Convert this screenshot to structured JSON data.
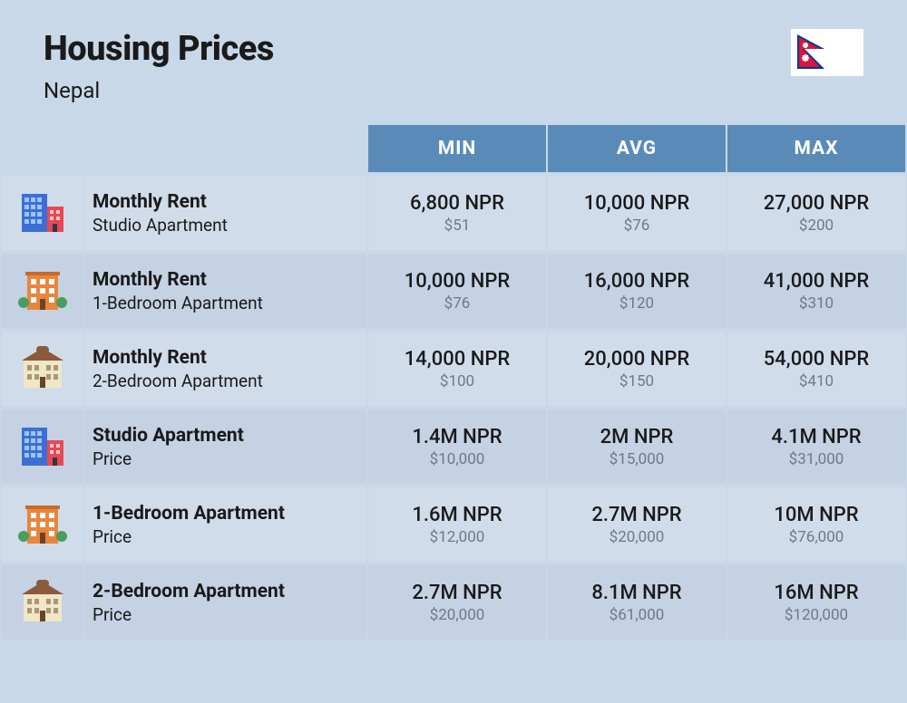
{
  "title": "Housing Prices",
  "country": "Nepal",
  "columns": {
    "min": "MIN",
    "avg": "AVG",
    "max": "MAX"
  },
  "colors": {
    "page_bg": "#c8d8e8",
    "header_bg": "#5a8bb8",
    "header_text": "#ffffff",
    "row_bg": "#d1dceb",
    "row_alt_bg": "#c4d2e4",
    "text_primary": "#1a1a1a",
    "text_secondary": "#6b7a8a",
    "flag_crimson": "#dc143c",
    "flag_blue": "#003893",
    "building_blue": "#3b6fd6",
    "building_red": "#e84855",
    "building_orange": "#e8863d",
    "building_cream": "#f0e6c8",
    "building_roof": "#8b5a3c",
    "bush_green": "#4a9d5f"
  },
  "rows": [
    {
      "icon": "buildings-blue-red",
      "title": "Monthly Rent",
      "subtitle": "Studio Apartment",
      "min_npr": "6,800 NPR",
      "min_usd": "$51",
      "avg_npr": "10,000 NPR",
      "avg_usd": "$76",
      "max_npr": "27,000 NPR",
      "max_usd": "$200"
    },
    {
      "icon": "building-orange",
      "title": "Monthly Rent",
      "subtitle": "1-Bedroom Apartment",
      "min_npr": "10,000 NPR",
      "min_usd": "$76",
      "avg_npr": "16,000 NPR",
      "avg_usd": "$120",
      "max_npr": "41,000 NPR",
      "max_usd": "$310"
    },
    {
      "icon": "house-cream",
      "title": "Monthly Rent",
      "subtitle": "2-Bedroom Apartment",
      "min_npr": "14,000 NPR",
      "min_usd": "$100",
      "avg_npr": "20,000 NPR",
      "avg_usd": "$150",
      "max_npr": "54,000 NPR",
      "max_usd": "$410"
    },
    {
      "icon": "buildings-blue-red",
      "title": "Studio Apartment",
      "subtitle": "Price",
      "min_npr": "1.4M NPR",
      "min_usd": "$10,000",
      "avg_npr": "2M NPR",
      "avg_usd": "$15,000",
      "max_npr": "4.1M NPR",
      "max_usd": "$31,000"
    },
    {
      "icon": "building-orange",
      "title": "1-Bedroom Apartment",
      "subtitle": "Price",
      "min_npr": "1.6M NPR",
      "min_usd": "$12,000",
      "avg_npr": "2.7M NPR",
      "avg_usd": "$20,000",
      "max_npr": "10M NPR",
      "max_usd": "$76,000"
    },
    {
      "icon": "house-cream",
      "title": "2-Bedroom Apartment",
      "subtitle": "Price",
      "min_npr": "2.7M NPR",
      "min_usd": "$20,000",
      "avg_npr": "8.1M NPR",
      "avg_usd": "$61,000",
      "max_npr": "16M NPR",
      "max_usd": "$120,000"
    }
  ]
}
